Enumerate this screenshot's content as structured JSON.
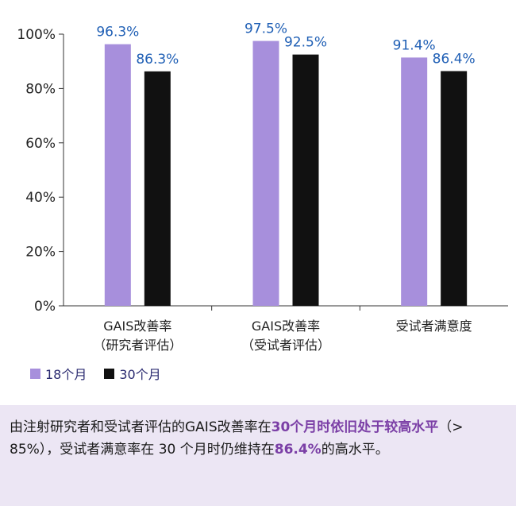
{
  "chart_data": {
    "type": "bar",
    "categories": [
      {
        "line1": "GAIS改善率",
        "line2": "（研究者评估）"
      },
      {
        "line1": "GAIS改善率",
        "line2": "（受试者评估）"
      },
      {
        "line1": "受试者满意度",
        "line2": ""
      }
    ],
    "series": [
      {
        "name": "18个月",
        "values": [
          96.3,
          97.5,
          91.4
        ],
        "labels": [
          "96.3%",
          "97.5%",
          "91.4%"
        ],
        "color": "#a78fdc"
      },
      {
        "name": "30个月",
        "values": [
          86.3,
          92.5,
          86.4
        ],
        "labels": [
          "86.3%",
          "92.5%",
          "86.4%"
        ],
        "color": "#111111"
      }
    ],
    "ylim": [
      0,
      100
    ],
    "yticks": [
      "0%",
      "20%",
      "40%",
      "60%",
      "80%",
      "100%"
    ],
    "ytick_values": [
      0,
      20,
      40,
      60,
      80,
      100
    ],
    "legend_position": "bottom-left"
  },
  "note": {
    "part1": "由注射研究者和受试者评估的GAIS改善率在",
    "highlight1": "30个月时依旧处于较高水平",
    "part2": "（> 85%），受试者满意率在 30 个月时仍维持在",
    "highlight2": "86.4%",
    "part3": "的高水平。"
  }
}
